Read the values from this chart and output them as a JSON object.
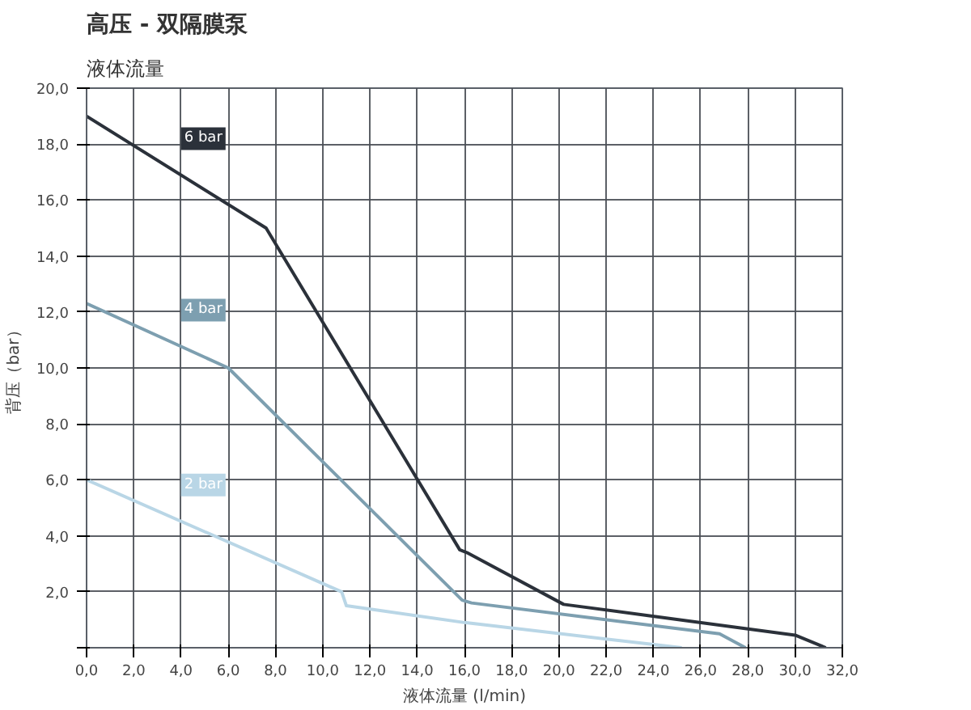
{
  "chart_data": {
    "type": "line",
    "title": "高压 -  双隔膜泵",
    "subtitle": "液体流量",
    "xlabel": "液体流量 (l/min)",
    "ylabel": "背压（bar）",
    "xlim": [
      0,
      32
    ],
    "ylim": [
      0,
      20
    ],
    "xticks": [
      {
        "value": 0,
        "label": "0,0"
      },
      {
        "value": 2,
        "label": "2,0"
      },
      {
        "value": 4,
        "label": "4,0"
      },
      {
        "value": 6,
        "label": "6,0"
      },
      {
        "value": 8,
        "label": "8,0"
      },
      {
        "value": 10,
        "label": "10,0"
      },
      {
        "value": 12,
        "label": "12,0"
      },
      {
        "value": 14,
        "label": "14,0"
      },
      {
        "value": 16,
        "label": "16,0"
      },
      {
        "value": 18,
        "label": "18,0"
      },
      {
        "value": 20,
        "label": "20,0"
      },
      {
        "value": 22,
        "label": "22,0"
      },
      {
        "value": 24,
        "label": "24,0"
      },
      {
        "value": 26,
        "label": "26,0"
      },
      {
        "value": 28,
        "label": "28,0"
      },
      {
        "value": 30,
        "label": "30,0"
      },
      {
        "value": 32,
        "label": "32,0"
      }
    ],
    "yticks": [
      {
        "value": 0,
        "label": null
      },
      {
        "value": 2,
        "label": "2,0"
      },
      {
        "value": 4,
        "label": "4,0"
      },
      {
        "value": 6,
        "label": "6,0"
      },
      {
        "value": 8,
        "label": "8,0"
      },
      {
        "value": 10,
        "label": "10,0"
      },
      {
        "value": 12,
        "label": "12,0"
      },
      {
        "value": 14,
        "label": "14,0"
      },
      {
        "value": 16,
        "label": "16,0"
      },
      {
        "value": 18,
        "label": "18,0"
      },
      {
        "value": 20,
        "label": "20,0"
      }
    ],
    "grid": true,
    "marker": "none",
    "line_style": "solid",
    "series": [
      {
        "name": "6 bar",
        "color": "#2b313a",
        "x": [
          0,
          7.6,
          15.8,
          16.1,
          20.2,
          30,
          31.3
        ],
        "values": [
          19,
          15,
          3.5,
          3.4,
          1.55,
          0.45,
          0
        ]
      },
      {
        "name": "4 bar",
        "color": "#7d9fb0",
        "x": [
          0,
          6,
          15.9,
          16.3,
          26.8,
          27.9
        ],
        "values": [
          12.3,
          10,
          1.7,
          1.6,
          0.5,
          0
        ]
      },
      {
        "name": "2 bar",
        "color": "#b9d6e6",
        "x": [
          0,
          10.8,
          11.0,
          16,
          25.2
        ],
        "values": [
          6,
          2.0,
          1.5,
          0.9,
          0
        ]
      }
    ]
  }
}
